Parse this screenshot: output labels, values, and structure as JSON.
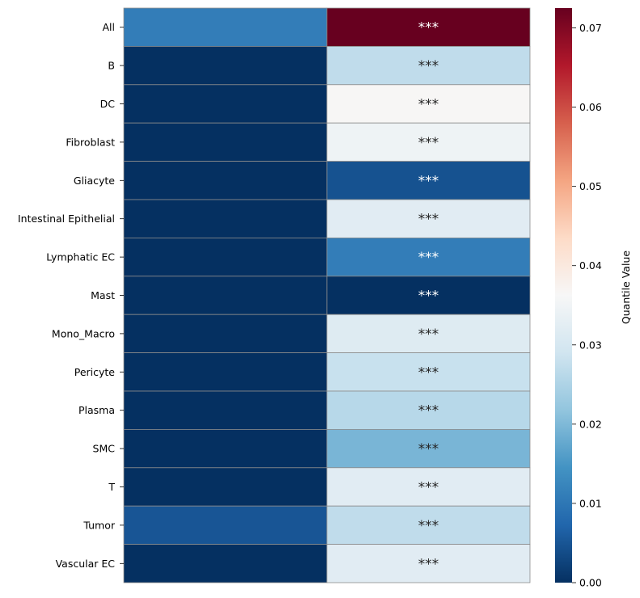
{
  "chart_data": {
    "type": "heatmap",
    "title": "",
    "xlabel": "",
    "ylabel": "",
    "rows": [
      "All",
      "B",
      "DC",
      "Fibroblast",
      "Gliacyte",
      "Intestinal Epithelial",
      "Lymphatic EC",
      "Mast",
      "Mono_Macro",
      "Pericyte",
      "Plasma",
      "SMC",
      "T",
      "Tumor",
      "Vascular EC"
    ],
    "columns": [
      "",
      ""
    ],
    "values": [
      [
        0.011,
        0.0725
      ],
      [
        0.0,
        0.027
      ],
      [
        0.0,
        0.0365
      ],
      [
        0.0,
        0.0345
      ],
      [
        0.0,
        0.0045
      ],
      [
        0.0,
        0.032
      ],
      [
        0.0,
        0.011
      ],
      [
        0.0,
        0.0
      ],
      [
        0.0,
        0.0315
      ],
      [
        0.0,
        0.028
      ],
      [
        0.0,
        0.026
      ],
      [
        0.0,
        0.0195
      ],
      [
        0.0,
        0.032
      ],
      [
        0.005,
        0.027
      ],
      [
        0.0,
        0.032
      ]
    ],
    "annotations": [
      [
        "",
        "***"
      ],
      [
        "",
        "***"
      ],
      [
        "",
        "***"
      ],
      [
        "",
        "***"
      ],
      [
        "",
        "***"
      ],
      [
        "",
        "***"
      ],
      [
        "",
        "***"
      ],
      [
        "",
        "***"
      ],
      [
        "",
        "***"
      ],
      [
        "",
        "***"
      ],
      [
        "",
        "***"
      ],
      [
        "",
        "***"
      ],
      [
        "",
        "***"
      ],
      [
        "",
        "***"
      ],
      [
        "",
        "***"
      ]
    ],
    "colorbar": {
      "label": "Quantile Value",
      "min": 0.0,
      "max": 0.0725,
      "colormap": "RdBu_r",
      "ticks": [
        "0.00",
        "0.01",
        "0.02",
        "0.03",
        "0.04",
        "0.05",
        "0.06",
        "0.07"
      ]
    }
  }
}
